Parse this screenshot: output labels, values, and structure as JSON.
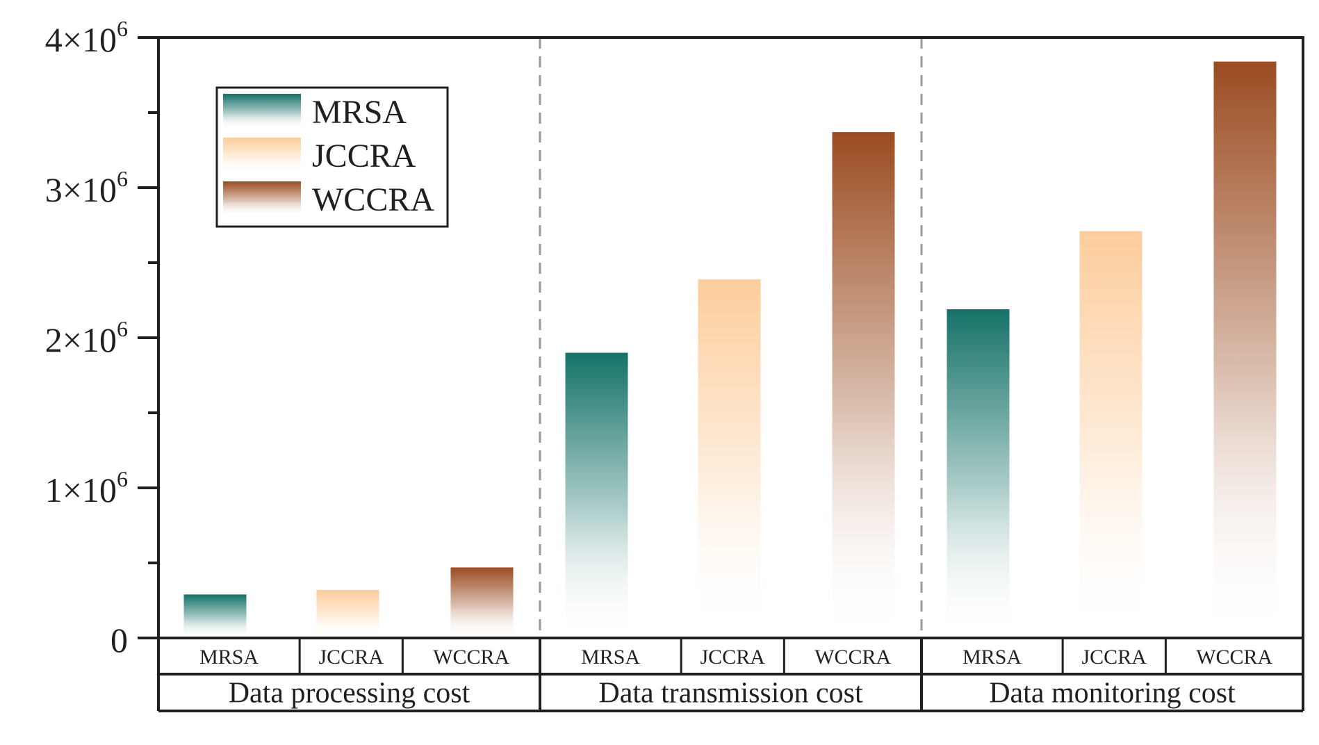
{
  "chart_data": {
    "type": "bar",
    "title": "",
    "xlabel": "",
    "ylabel": "",
    "ylim": [
      0,
      4000000
    ],
    "yticks": [
      {
        "value": 0,
        "label": "0"
      },
      {
        "value": 1000000,
        "mant": "1",
        "label": "1×10^6"
      },
      {
        "value": 2000000,
        "mant": "2",
        "label": "2×10^6"
      },
      {
        "value": 3000000,
        "mant": "3",
        "label": "3×10^6"
      },
      {
        "value": 4000000,
        "mant": "4",
        "label": "4×10^6"
      }
    ],
    "tick_sym": "×10",
    "tick_exp": "6",
    "minor_ticks": [
      500000,
      1500000,
      2500000,
      3500000
    ],
    "legend_position": "top-left",
    "groups": [
      "Data processing cost",
      "Data transmission cost",
      "Data monitoring cost"
    ],
    "categories": [
      "MRSA",
      "JCCRA",
      "WCCRA"
    ],
    "series": [
      {
        "name": "MRSA",
        "color": "#157268",
        "values": [
          290000,
          1900000,
          2190000
        ]
      },
      {
        "name": "JCCRA",
        "color": "#fdcd9c",
        "values": [
          320000,
          2390000,
          2710000
        ]
      },
      {
        "name": "WCCRA",
        "color": "#9b4c21",
        "values": [
          470000,
          3370000,
          3840000
        ]
      }
    ],
    "colors": {
      "axis": "#231f20",
      "divider": "#9a9a9a"
    }
  }
}
